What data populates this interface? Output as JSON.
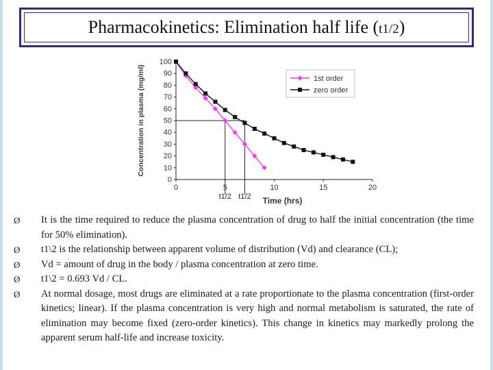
{
  "slide": {
    "title_main": "Pharmacokinetics: Elimination half life (",
    "title_sub": "t1/2",
    "title_close": ")"
  },
  "chart_data": {
    "type": "line",
    "xlabel": "Time (hrs)",
    "ylabel": "Concentration in plasma (mg/ml)",
    "xlim": [
      0,
      20
    ],
    "ylim": [
      0,
      100
    ],
    "x_ticks": [
      "0",
      "5",
      "10",
      "15",
      "20"
    ],
    "y_ticks": [
      "0",
      "10",
      "20",
      "30",
      "40",
      "50",
      "60",
      "70",
      "80",
      "90",
      "100"
    ],
    "legend_position": "top-right",
    "series": [
      {
        "name": "1st order",
        "color": "#ff33ff",
        "marker": "diamond",
        "x": [
          0,
          1,
          2,
          3,
          4,
          5,
          6,
          7,
          8,
          9
        ],
        "y": [
          100,
          88,
          78,
          69,
          60,
          50,
          40,
          30,
          20,
          10
        ]
      },
      {
        "name": "zero order",
        "color": "#111111",
        "marker": "square",
        "x": [
          0,
          1,
          2,
          3,
          4,
          5,
          6,
          7,
          8,
          9,
          10,
          11,
          12,
          13,
          14,
          15,
          16,
          17,
          18
        ],
        "y": [
          100,
          90,
          81,
          73,
          66,
          59,
          53,
          48,
          43,
          39,
          35,
          31,
          28,
          25,
          23,
          21,
          19,
          17,
          15
        ]
      }
    ],
    "annotations": [
      {
        "text": "t1/2",
        "x": 5,
        "y": 50
      },
      {
        "text": "t1/2",
        "x": 7,
        "y": 48
      }
    ]
  },
  "bullets": [
    "It is the time required to reduce the plasma concentration of drug to half the initial concentration (the time for 50% elimination).",
    "t1\\2 is the relationship between apparent volume of distribution (Vd) and clearance (CL);",
    "Vd = amount of drug in the body / plasma concentration at zero time.",
    "t1\\2 = 0.693 Vd / CL.",
    "At normal dosage, most drugs are eliminated at a rate proportionate to the plasma concentration (first-order kinetics; linear). If the plasma concentration is very high and normal metabolism is saturated, the rate of elimination may become fixed (zero-order kinetics). This change in kinetics may markedly prolong the apparent serum half-life and increase toxicity."
  ],
  "bullet_glyph": "Ø",
  "colors": {
    "title_border": "#2c2c7a",
    "side_rule": "#c9dcea"
  }
}
